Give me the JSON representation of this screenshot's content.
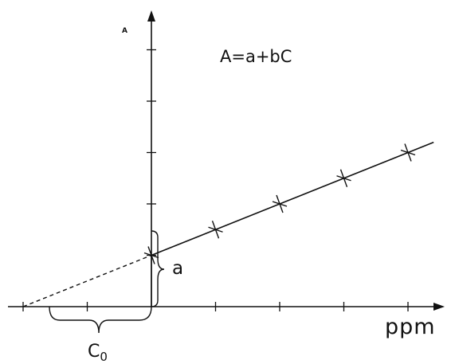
{
  "diagram": {
    "y_axis_label": "A",
    "x_axis_label": "ppm",
    "equation": "A=a+bC",
    "intercept_label": "a",
    "extrapolated_label_base": "C",
    "extrapolated_label_subscript": "0"
  },
  "chart_data": {
    "type": "scatter",
    "title": "",
    "xlabel": "ppm",
    "ylabel": "A",
    "description_text": "A=a+bC",
    "series": [
      {
        "points": [
          [
            0,
            1
          ],
          [
            1,
            1.5
          ],
          [
            2,
            2
          ],
          [
            3,
            2.5
          ],
          [
            4,
            3
          ]
        ]
      }
    ],
    "fit_line": {
      "intercept": 1,
      "slope": 0.5,
      "extend_to_x": 4.4
    },
    "extrapolation": {
      "from_x": -2,
      "to_x": 0,
      "style": "dashed"
    },
    "x_ticks": [
      -2,
      -1,
      1,
      2,
      3,
      4
    ],
    "y_ticks": [
      1,
      2,
      3,
      4,
      5
    ],
    "grid": false
  },
  "colors": {
    "ink": "#111111",
    "background": "#ffffff"
  }
}
